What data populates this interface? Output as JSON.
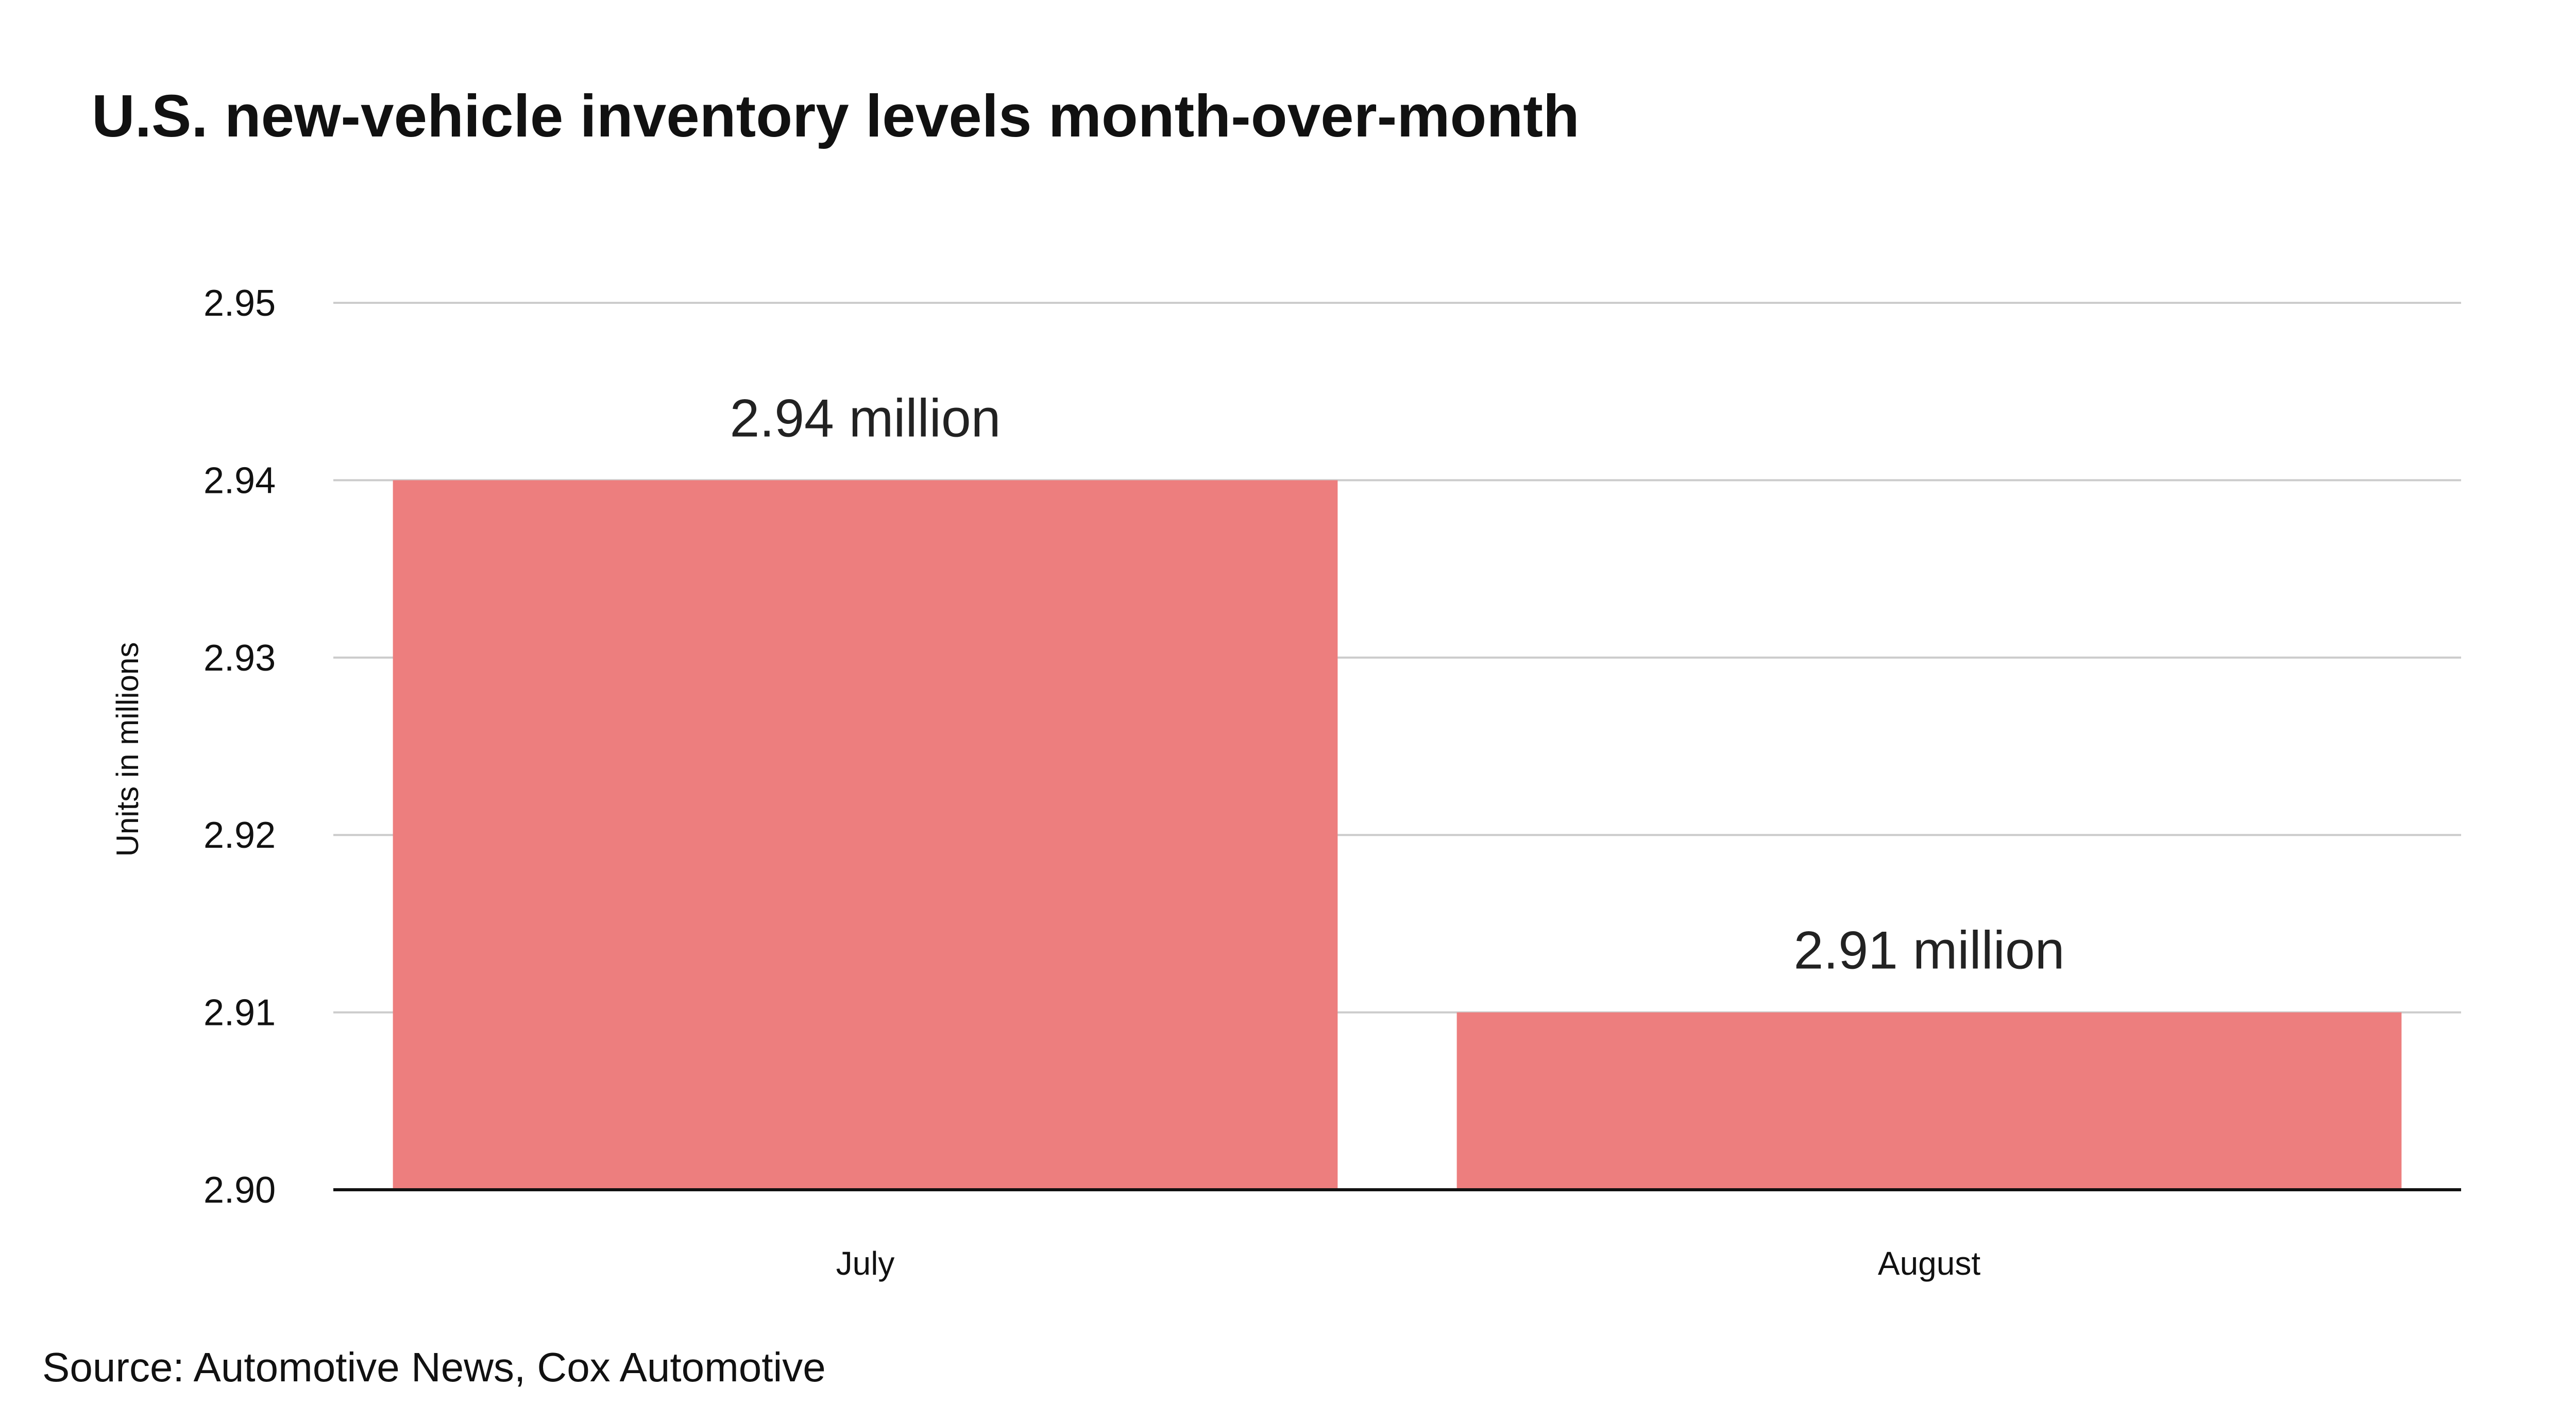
{
  "chart_data": {
    "type": "bar",
    "title": "U.S. new-vehicle inventory levels month-over-month",
    "ylabel": "Units in millions",
    "xlabel": "",
    "categories": [
      "July",
      "August"
    ],
    "values": [
      2.94,
      2.91
    ],
    "data_labels": [
      "2.94 million",
      "2.91 million"
    ],
    "ylim": [
      2.9,
      2.95
    ],
    "yticks": [
      2.9,
      2.91,
      2.92,
      2.93,
      2.94,
      2.95
    ],
    "ytick_labels": [
      "2.90",
      "2.91",
      "2.92",
      "2.93",
      "2.94",
      "2.95"
    ],
    "grid": true,
    "bar_color": "#ED7E7E",
    "grid_color": "#CCCCCC",
    "axis_color": "#111111"
  },
  "source": "Source: Automotive News, Cox Automotive"
}
